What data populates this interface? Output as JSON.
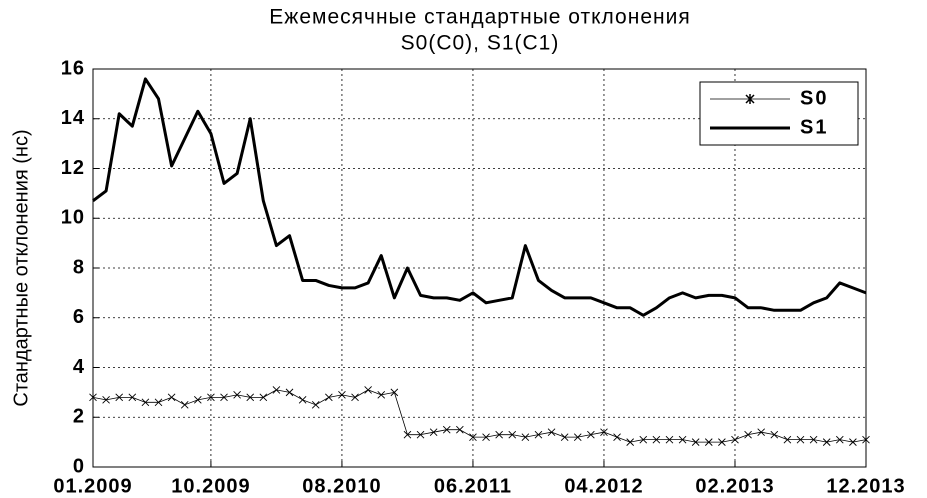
{
  "chart_data": {
    "type": "line",
    "title": "Ежемесячные стандартные отклонения",
    "subtitle": "S0(C0), S1(C1)",
    "y_label": "Стандартные отклонения (нс)",
    "categories": [
      "01.2009",
      null,
      null,
      null,
      null,
      null,
      null,
      null,
      null,
      "10.2009",
      null,
      null,
      null,
      null,
      null,
      null,
      null,
      null,
      null,
      "08.2010",
      null,
      null,
      null,
      null,
      null,
      null,
      null,
      null,
      null,
      "06.2011",
      null,
      null,
      null,
      null,
      null,
      null,
      null,
      null,
      null,
      "04.2012",
      null,
      null,
      null,
      null,
      null,
      null,
      null,
      null,
      null,
      "02.2013",
      null,
      null,
      null,
      null,
      null,
      null,
      null,
      null,
      null,
      "12.2013"
    ],
    "series": [
      {
        "name": "S0",
        "color": "#000000",
        "marker": "x",
        "values": [
          2.8,
          2.7,
          2.8,
          2.8,
          2.6,
          2.6,
          2.8,
          2.5,
          2.7,
          2.8,
          2.8,
          2.9,
          2.8,
          2.8,
          3.1,
          3.0,
          2.7,
          2.5,
          2.8,
          2.9,
          2.8,
          3.1,
          2.9,
          3.0,
          1.3,
          1.3,
          1.4,
          1.5,
          1.5,
          1.2,
          1.2,
          1.3,
          1.3,
          1.2,
          1.3,
          1.4,
          1.2,
          1.2,
          1.3,
          1.4,
          1.2,
          1.0,
          1.1,
          1.1,
          1.1,
          1.1,
          1.0,
          1.0,
          1.0,
          1.1,
          1.3,
          1.4,
          1.3,
          1.1,
          1.1,
          1.1,
          1.0,
          1.1,
          1.0,
          1.1
        ]
      },
      {
        "name": "S1",
        "color": "#000000",
        "values": [
          10.7,
          11.1,
          14.2,
          13.7,
          15.6,
          14.8,
          12.1,
          13.2,
          14.3,
          13.4,
          11.4,
          11.8,
          14.0,
          10.7,
          8.9,
          9.3,
          7.5,
          7.5,
          7.3,
          7.2,
          7.2,
          7.4,
          8.5,
          6.8,
          8.0,
          6.9,
          6.8,
          6.8,
          6.7,
          7.0,
          6.6,
          6.7,
          6.8,
          8.9,
          7.5,
          7.1,
          6.8,
          6.8,
          6.8,
          6.6,
          6.4,
          6.4,
          6.1,
          6.4,
          6.8,
          7.0,
          6.8,
          6.9,
          6.9,
          6.8,
          6.4,
          6.4,
          6.3,
          6.3,
          6.3,
          6.6,
          6.8,
          7.4,
          7.2,
          7.0
        ]
      }
    ],
    "ylim": [
      0,
      16
    ],
    "yticks": [
      0,
      2,
      4,
      6,
      8,
      10,
      12,
      14,
      16
    ],
    "grid": true,
    "legend": "upper right"
  }
}
